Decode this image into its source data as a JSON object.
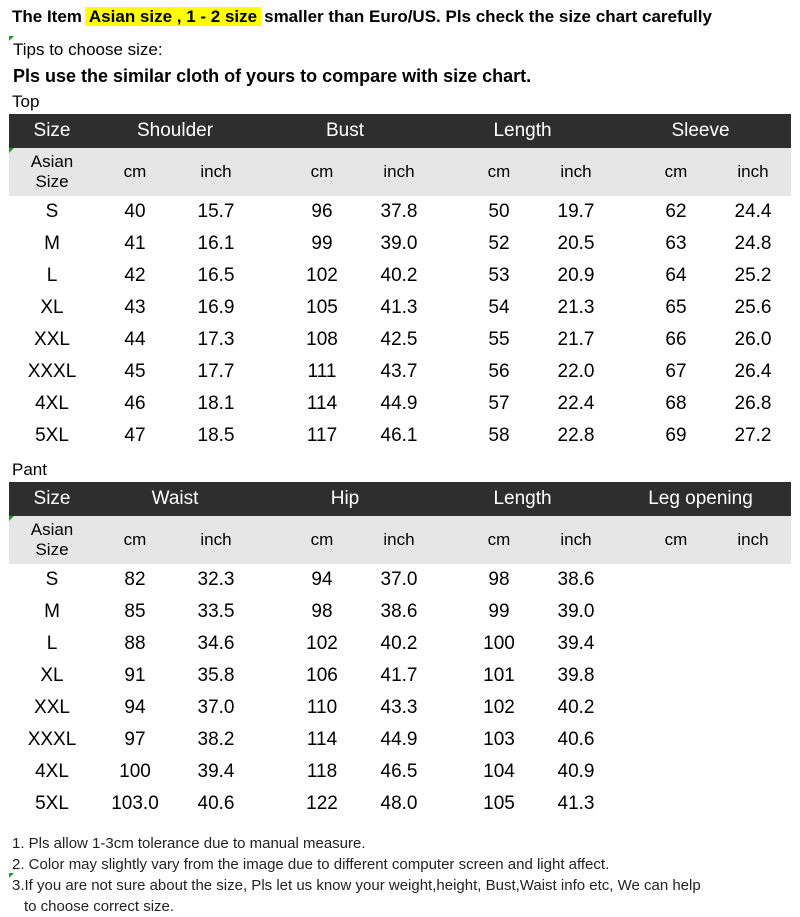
{
  "header": {
    "line1_prefix": "The Item",
    "line1_highlight": "Asian size , 1 - 2 size",
    "line1_suffix": "smaller than Euro/US. Pls check the size chart carefully",
    "tips": "Tips to choose size:",
    "compare": "Pls use the similar cloth of yours to compare with size chart."
  },
  "colors": {
    "highlight": "#ffff00",
    "header_bg": "#2e2e2e",
    "subheader_bg": "#e6e6e6",
    "tick": "#1a9e2b"
  },
  "top": {
    "label": "Top",
    "groups": [
      "Size",
      "Shoulder",
      "Bust",
      "Length",
      "Sleeve"
    ],
    "size_header": "Asian Size",
    "units": [
      "cm",
      "inch",
      "cm",
      "inch",
      "cm",
      "inch",
      "cm",
      "inch"
    ],
    "rows": [
      [
        "S",
        "40",
        "15.7",
        "96",
        "37.8",
        "50",
        "19.7",
        "62",
        "24.4"
      ],
      [
        "M",
        "41",
        "16.1",
        "99",
        "39.0",
        "52",
        "20.5",
        "63",
        "24.8"
      ],
      [
        "L",
        "42",
        "16.5",
        "102",
        "40.2",
        "53",
        "20.9",
        "64",
        "25.2"
      ],
      [
        "XL",
        "43",
        "16.9",
        "105",
        "41.3",
        "54",
        "21.3",
        "65",
        "25.6"
      ],
      [
        "XXL",
        "44",
        "17.3",
        "108",
        "42.5",
        "55",
        "21.7",
        "66",
        "26.0"
      ],
      [
        "XXXL",
        "45",
        "17.7",
        "111",
        "43.7",
        "56",
        "22.0",
        "67",
        "26.4"
      ],
      [
        "4XL",
        "46",
        "18.1",
        "114",
        "44.9",
        "57",
        "22.4",
        "68",
        "26.8"
      ],
      [
        "5XL",
        "47",
        "18.5",
        "117",
        "46.1",
        "58",
        "22.8",
        "69",
        "27.2"
      ]
    ]
  },
  "pant": {
    "label": "Pant",
    "groups": [
      "Size",
      "Waist",
      "Hip",
      "Length",
      "Leg opening"
    ],
    "size_header": "Asian Size",
    "units": [
      "cm",
      "inch",
      "cm",
      "inch",
      "cm",
      "inch",
      "cm",
      "inch"
    ],
    "rows": [
      [
        "S",
        "82",
        "32.3",
        "94",
        "37.0",
        "98",
        "38.6",
        "",
        ""
      ],
      [
        "M",
        "85",
        "33.5",
        "98",
        "38.6",
        "99",
        "39.0",
        "",
        ""
      ],
      [
        "L",
        "88",
        "34.6",
        "102",
        "40.2",
        "100",
        "39.4",
        "",
        ""
      ],
      [
        "XL",
        "91",
        "35.8",
        "106",
        "41.7",
        "101",
        "39.8",
        "",
        ""
      ],
      [
        "XXL",
        "94",
        "37.0",
        "110",
        "43.3",
        "102",
        "40.2",
        "",
        ""
      ],
      [
        "XXXL",
        "97",
        "38.2",
        "114",
        "44.9",
        "103",
        "40.6",
        "",
        ""
      ],
      [
        "4XL",
        "100",
        "39.4",
        "118",
        "46.5",
        "104",
        "40.9",
        "",
        ""
      ],
      [
        "5XL",
        "103.0",
        "40.6",
        "122",
        "48.0",
        "105",
        "41.3",
        "",
        ""
      ]
    ]
  },
  "notes": [
    "1. Pls allow 1-3cm tolerance due to manual measure.",
    "2. Color may slightly vary from the image due to different computer screen and light affect.",
    "3.If you are not sure about the size, Pls let us know your weight,height, Bust,Waist info etc, We can help",
    "   to choose correct size."
  ]
}
